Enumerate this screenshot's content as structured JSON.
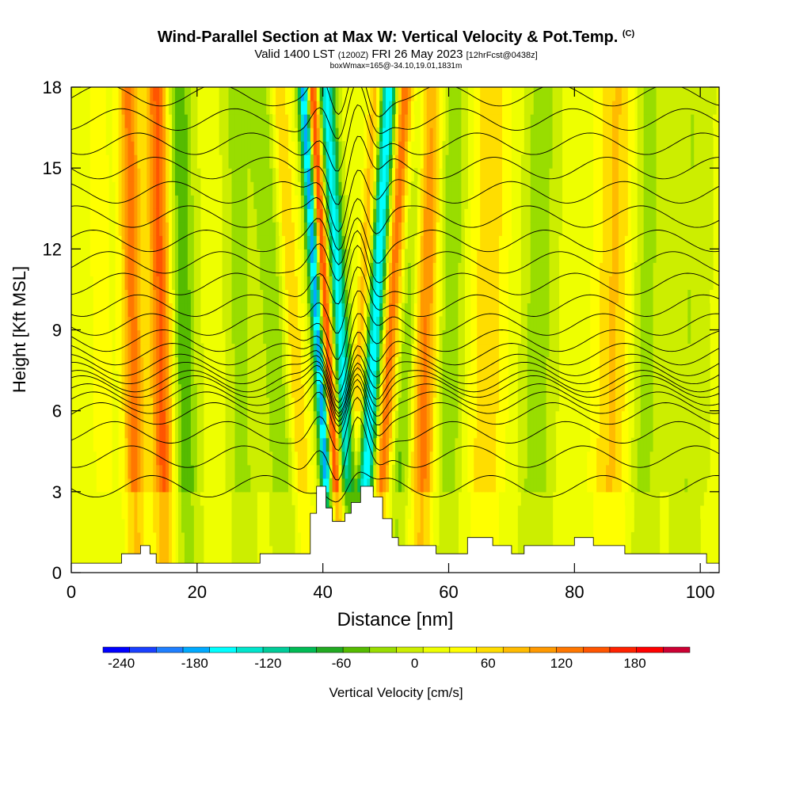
{
  "header": {
    "title": "Wind-Parallel Section at Max W: Vertical Velocity & Pot.Temp.",
    "title_units": "(C)",
    "valid_prefix": "Valid 1400 LST",
    "valid_utc": "(1200Z)",
    "valid_date": "FRI 26 May 2023",
    "forecast": "[12hrFcst@0438z]",
    "box_note": "boxWmax=165@-34.10,19.01,1831m"
  },
  "chart_data": {
    "type": "heatmap",
    "title": "Wind-Parallel Section at Max W: Vertical Velocity & Pot.Temp.",
    "xlabel": "Distance [nm]",
    "ylabel": "Height [Kft MSL]",
    "xlim": [
      0,
      103
    ],
    "ylim": [
      0,
      18
    ],
    "x_ticks": [
      0,
      20,
      40,
      60,
      80,
      100
    ],
    "y_ticks": [
      0,
      3,
      6,
      9,
      12,
      15,
      18
    ],
    "colorbar": {
      "label": "Vertical Velocity [cm/s]",
      "min": -255,
      "max": 225,
      "tick_values": [
        -240,
        -180,
        -120,
        -60,
        0,
        60,
        120,
        180
      ],
      "tick_labels": [
        "-240",
        "-180",
        "-120",
        "-60",
        "0",
        "60",
        "120",
        "180"
      ],
      "colors": [
        "#0000ff",
        "#1a40ff",
        "#1f7fff",
        "#00aaff",
        "#00ffff",
        "#00e5cc",
        "#00cc99",
        "#00bb55",
        "#22aa22",
        "#55bb00",
        "#99dd00",
        "#ccee00",
        "#eeff00",
        "#ffff00",
        "#ffdd00",
        "#ffbb00",
        "#ff9900",
        "#ff7700",
        "#ff5500",
        "#ff2200",
        "#ff0000",
        "#cc0033"
      ]
    },
    "velocity_bands": [
      {
        "x": 5,
        "w": 2.2,
        "v": 20
      },
      {
        "x": 10,
        "w": 1.6,
        "v": 110
      },
      {
        "x": 14.5,
        "w": 1.8,
        "v": 130
      },
      {
        "x": 18,
        "w": 2.0,
        "v": -70
      },
      {
        "x": 27,
        "w": 2.0,
        "v": -40
      },
      {
        "x": 33,
        "w": 2.2,
        "v": -50
      },
      {
        "x": 36,
        "w": 1.5,
        "v": 60
      },
      {
        "x": 40,
        "w": 1.0,
        "v": -230
      },
      {
        "x": 41.2,
        "w": 1.0,
        "v": 190
      },
      {
        "x": 43.5,
        "w": 1.3,
        "v": -170
      },
      {
        "x": 45.5,
        "w": 1.1,
        "v": 80
      },
      {
        "x": 47.5,
        "w": 1.4,
        "v": -180
      },
      {
        "x": 50,
        "w": 1.3,
        "v": 120
      },
      {
        "x": 53,
        "w": 1.6,
        "v": -60
      },
      {
        "x": 56,
        "w": 2.0,
        "v": 110
      },
      {
        "x": 60,
        "w": 2.2,
        "v": -50
      },
      {
        "x": 66,
        "w": 3.0,
        "v": 50
      },
      {
        "x": 74,
        "w": 2.5,
        "v": -45
      },
      {
        "x": 86,
        "w": 3.0,
        "v": 60
      },
      {
        "x": 91,
        "w": 2.5,
        "v": -40
      },
      {
        "x": 98,
        "w": 3.0,
        "v": -30
      }
    ],
    "terrain_kft": [
      [
        0,
        0.35
      ],
      [
        8,
        0.35
      ],
      [
        8,
        0.7
      ],
      [
        11,
        0.7
      ],
      [
        11,
        1.0
      ],
      [
        12.5,
        1.0
      ],
      [
        12.5,
        0.7
      ],
      [
        13.5,
        0.7
      ],
      [
        13.5,
        0.35
      ],
      [
        30,
        0.35
      ],
      [
        30,
        0.7
      ],
      [
        38,
        0.7
      ],
      [
        38,
        2.2
      ],
      [
        39,
        2.2
      ],
      [
        39,
        3.2
      ],
      [
        40.5,
        3.2
      ],
      [
        40.5,
        2.4
      ],
      [
        41.5,
        2.4
      ],
      [
        41.5,
        1.9
      ],
      [
        43.5,
        1.9
      ],
      [
        43.5,
        2.2
      ],
      [
        44.5,
        2.2
      ],
      [
        44.5,
        2.6
      ],
      [
        46,
        2.6
      ],
      [
        46,
        3.2
      ],
      [
        48,
        3.2
      ],
      [
        48,
        2.8
      ],
      [
        49.5,
        2.8
      ],
      [
        49.5,
        2.0
      ],
      [
        51,
        2.0
      ],
      [
        51,
        1.3
      ],
      [
        52,
        1.3
      ],
      [
        52,
        1.0
      ],
      [
        58,
        1.0
      ],
      [
        58,
        0.7
      ],
      [
        63,
        0.7
      ],
      [
        63,
        1.3
      ],
      [
        67,
        1.3
      ],
      [
        67,
        1.0
      ],
      [
        70,
        1.0
      ],
      [
        70,
        0.7
      ],
      [
        72,
        0.7
      ],
      [
        72,
        1.0
      ],
      [
        80,
        1.0
      ],
      [
        80,
        1.3
      ],
      [
        83,
        1.3
      ],
      [
        83,
        1.0
      ],
      [
        88,
        1.0
      ],
      [
        88,
        0.7
      ],
      [
        101,
        0.7
      ],
      [
        101,
        0.35
      ],
      [
        103,
        0.35
      ]
    ],
    "isentrope_base_kft": [
      3.2,
      4.3,
      5.2,
      5.9,
      6.3,
      6.6,
      6.9,
      7.1,
      7.4,
      7.7,
      8.1,
      8.6,
      9.2,
      9.9,
      10.7,
      11.5,
      12.3,
      13.2,
      14.1,
      15.0,
      15.9,
      16.8,
      17.7
    ]
  },
  "colorbar_label": "Vertical Velocity [cm/s]"
}
